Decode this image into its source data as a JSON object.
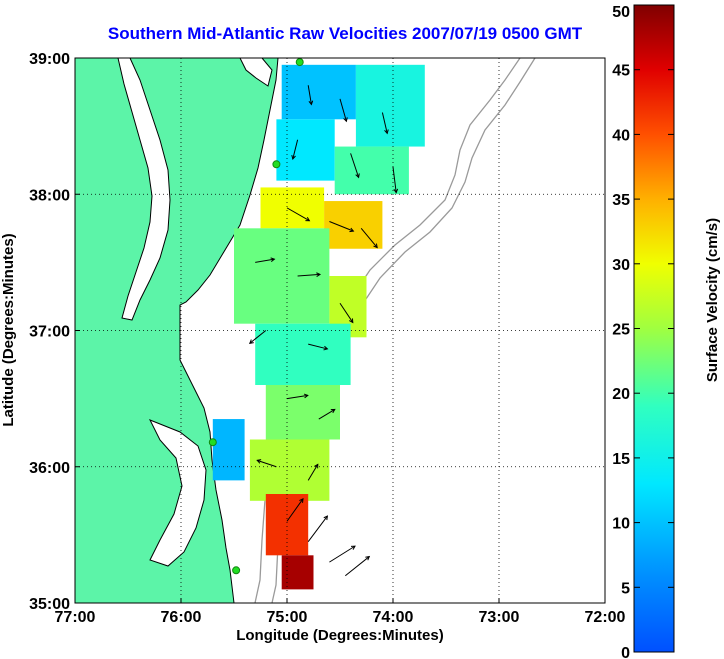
{
  "chart_data": {
    "type": "heatmap",
    "title": "Southern Mid-Atlantic Raw Velocities 2007/07/19 0500 GMT",
    "xlabel": "Longitude (Degrees:Minutes)",
    "ylabel": "Latitude (Degrees:Minutes)",
    "x_ticks": [
      "77:00",
      "76:00",
      "75:00",
      "74:00",
      "73:00",
      "72:00"
    ],
    "y_ticks": [
      "39:00",
      "38:00",
      "37:00",
      "36:00",
      "35:00"
    ],
    "xlim": [
      -77,
      -72
    ],
    "ylim": [
      35,
      39
    ],
    "grid": true,
    "colorbar": {
      "label": "Surface Velocity (cm/s)",
      "min": 0,
      "max": 50,
      "ticks": [
        "0",
        "5",
        "10",
        "15",
        "20",
        "25",
        "30",
        "35",
        "40",
        "45",
        "50"
      ]
    },
    "colors": {
      "land": "#5cf4a8",
      "coastline": "#000000",
      "bathymetry": "#9a9a9a",
      "station": "#22dd22"
    },
    "stations": [
      {
        "lon": -74.88,
        "lat": 38.97
      },
      {
        "lon": -75.1,
        "lat": 38.22
      },
      {
        "lon": -75.7,
        "lat": 36.18
      },
      {
        "lon": -75.48,
        "lat": 35.24
      }
    ],
    "regions": [
      {
        "lon_min": -75.05,
        "lon_max": -74.35,
        "lat_min": 38.55,
        "lat_max": 38.95,
        "velocity": 10
      },
      {
        "lon_min": -74.35,
        "lon_max": -73.7,
        "lat_min": 38.35,
        "lat_max": 38.95,
        "velocity": 16
      },
      {
        "lon_min": -75.1,
        "lon_max": -74.55,
        "lat_min": 38.1,
        "lat_max": 38.55,
        "velocity": 13
      },
      {
        "lon_min": -74.55,
        "lon_max": -73.85,
        "lat_min": 38.0,
        "lat_max": 38.35,
        "velocity": 20
      },
      {
        "lon_min": -75.25,
        "lon_max": -74.65,
        "lat_min": 37.75,
        "lat_max": 38.05,
        "velocity": 30
      },
      {
        "lon_min": -74.65,
        "lon_max": -74.1,
        "lat_min": 37.6,
        "lat_max": 37.95,
        "velocity": 33
      },
      {
        "lon_min": -75.5,
        "lon_max": -74.6,
        "lat_min": 37.05,
        "lat_max": 37.75,
        "velocity": 22
      },
      {
        "lon_min": -74.6,
        "lon_max": -74.25,
        "lat_min": 36.95,
        "lat_max": 37.4,
        "velocity": 27
      },
      {
        "lon_min": -75.3,
        "lon_max": -74.4,
        "lat_min": 36.6,
        "lat_max": 37.05,
        "velocity": 19
      },
      {
        "lon_min": -75.2,
        "lon_max": -74.5,
        "lat_min": 36.2,
        "lat_max": 36.6,
        "velocity": 23
      },
      {
        "lon_min": -75.7,
        "lon_max": -75.4,
        "lat_min": 35.9,
        "lat_max": 36.35,
        "velocity": 9
      },
      {
        "lon_min": -75.35,
        "lon_max": -74.6,
        "lat_min": 35.75,
        "lat_max": 36.2,
        "velocity": 26
      },
      {
        "lon_min": -75.2,
        "lon_max": -74.8,
        "lat_min": 35.35,
        "lat_max": 35.8,
        "velocity": 42
      },
      {
        "lon_min": -75.05,
        "lon_max": -74.75,
        "lat_min": 35.1,
        "lat_max": 35.35,
        "velocity": 48
      }
    ],
    "vectors": [
      {
        "lon": -74.8,
        "lat": 38.8,
        "u": 2,
        "v": -12
      },
      {
        "lon": -74.5,
        "lat": 38.7,
        "u": 4,
        "v": -14
      },
      {
        "lon": -74.1,
        "lat": 38.6,
        "u": 3,
        "v": -13
      },
      {
        "lon": -74.9,
        "lat": 38.4,
        "u": -3,
        "v": -12
      },
      {
        "lon": -74.4,
        "lat": 38.3,
        "u": 5,
        "v": -15
      },
      {
        "lon": -74.0,
        "lat": 38.2,
        "u": 2,
        "v": -16
      },
      {
        "lon": -75.0,
        "lat": 37.9,
        "u": 14,
        "v": -8
      },
      {
        "lon": -74.6,
        "lat": 37.8,
        "u": 15,
        "v": -6
      },
      {
        "lon": -74.3,
        "lat": 37.75,
        "u": 10,
        "v": -12
      },
      {
        "lon": -75.3,
        "lat": 37.5,
        "u": 12,
        "v": 2
      },
      {
        "lon": -74.9,
        "lat": 37.4,
        "u": 14,
        "v": 1
      },
      {
        "lon": -74.5,
        "lat": 37.2,
        "u": 8,
        "v": -12
      },
      {
        "lon": -75.2,
        "lat": 37.0,
        "u": -10,
        "v": -8
      },
      {
        "lon": -74.8,
        "lat": 36.9,
        "u": 12,
        "v": -3
      },
      {
        "lon": -75.0,
        "lat": 36.5,
        "u": 13,
        "v": 2
      },
      {
        "lon": -74.7,
        "lat": 36.35,
        "u": 10,
        "v": 6
      },
      {
        "lon": -75.1,
        "lat": 36.0,
        "u": -12,
        "v": 4
      },
      {
        "lon": -74.8,
        "lat": 35.9,
        "u": 6,
        "v": 10
      },
      {
        "lon": -75.0,
        "lat": 35.6,
        "u": 10,
        "v": 14
      },
      {
        "lon": -74.8,
        "lat": 35.45,
        "u": 12,
        "v": 16
      },
      {
        "lon": -74.6,
        "lat": 35.3,
        "u": 16,
        "v": 10
      },
      {
        "lon": -74.45,
        "lat": 35.2,
        "u": 15,
        "v": 12
      }
    ]
  }
}
